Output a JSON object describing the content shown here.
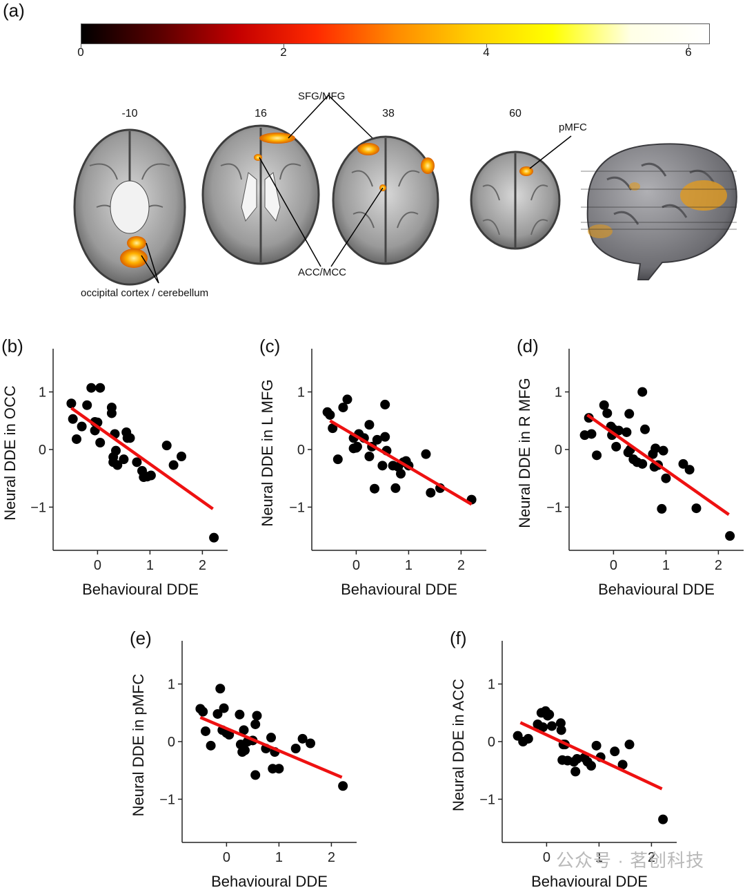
{
  "figure": {
    "panel_a": {
      "label": "(a)",
      "colorbar": {
        "ticks": [
          "0",
          "2",
          "4",
          "6"
        ],
        "colors": [
          "#000000",
          "#5a0000",
          "#c40000",
          "#ff2a00",
          "#ff8a00",
          "#ffd000",
          "#ffff00",
          "#ffffe6",
          "#ffffff"
        ]
      },
      "slices": [
        "-10",
        "16",
        "38",
        "60"
      ],
      "annotations": {
        "sfg_mfg": "SFG/MFG",
        "pmfc": "pMFC",
        "acc_mcc": "ACC/MCC",
        "occipital": "occipital cortex / cerebellum"
      }
    },
    "watermark": "公众号 · 茗创科技"
  },
  "chart_data": [
    {
      "panel": "(b)",
      "type": "scatter",
      "xlabel": "Behavioural DDE",
      "ylabel": "Neural DDE in OCC",
      "xlim": [
        -0.65,
        2.35
      ],
      "ylim": [
        -1.75,
        1.75
      ],
      "xticks": [
        "0",
        "1",
        "2"
      ],
      "yticks": [
        "1",
        "0",
        "−1"
      ],
      "x": [
        -0.5,
        -0.47,
        -0.4,
        -0.3,
        -0.2,
        -0.12,
        -0.05,
        -0.05,
        0.05,
        0.05,
        0.0,
        0.27,
        0.27,
        0.3,
        0.3,
        0.33,
        0.35,
        0.38,
        0.5,
        0.55,
        0.57,
        0.62,
        0.75,
        0.85,
        0.88,
        0.95,
        1.02,
        1.32,
        1.45,
        1.6,
        2.22
      ],
      "y": [
        0.8,
        0.53,
        0.18,
        0.4,
        0.77,
        1.07,
        0.33,
        0.48,
        1.07,
        0.12,
        0.47,
        0.73,
        0.63,
        -0.13,
        -0.22,
        0.27,
        -0.02,
        -0.27,
        -0.17,
        0.3,
        0.2,
        0.2,
        -0.22,
        -0.37,
        -0.48,
        -0.47,
        -0.45,
        0.07,
        -0.27,
        -0.12,
        -1.53
      ],
      "fit": {
        "x": [
          -0.5,
          2.2
        ],
        "y": [
          0.72,
          -1.03
        ]
      }
    },
    {
      "panel": "(c)",
      "type": "scatter",
      "xlabel": "Behavioural DDE",
      "ylabel": "Neural DDE in L MFG",
      "xlim": [
        -0.65,
        2.35
      ],
      "ylim": [
        -1.75,
        1.75
      ],
      "xticks": [
        "0",
        "1",
        "2"
      ],
      "yticks": [
        "1",
        "0",
        "−1"
      ],
      "x": [
        -0.55,
        -0.5,
        -0.45,
        -0.35,
        -0.25,
        -0.17,
        -0.05,
        -0.05,
        0.0,
        0.02,
        0.05,
        0.15,
        0.25,
        0.25,
        0.3,
        0.35,
        0.4,
        0.5,
        0.55,
        0.55,
        0.58,
        0.7,
        0.75,
        0.8,
        0.85,
        0.9,
        0.95,
        1.0,
        1.33,
        1.42,
        1.6,
        2.2
      ],
      "y": [
        0.65,
        0.6,
        0.37,
        -0.17,
        0.73,
        0.87,
        0.2,
        0.02,
        0.03,
        0.05,
        0.27,
        0.2,
        0.43,
        -0.12,
        0.05,
        -0.68,
        0.17,
        -0.28,
        0.78,
        0.22,
        -0.02,
        -0.28,
        -0.67,
        -0.3,
        -0.42,
        -0.22,
        -0.2,
        -0.28,
        -0.08,
        -0.75,
        -0.67,
        -0.87
      ],
      "fit": {
        "x": [
          -0.5,
          2.2
        ],
        "y": [
          0.5,
          -0.95
        ]
      }
    },
    {
      "panel": "(d)",
      "type": "scatter",
      "xlabel": "Behavioural DDE",
      "ylabel": "Neural DDE in R MFG",
      "xlim": [
        -0.65,
        2.35
      ],
      "ylim": [
        -1.75,
        1.75
      ],
      "xticks": [
        "0",
        "1",
        "2"
      ],
      "yticks": [
        "1",
        "0",
        "−1"
      ],
      "x": [
        -0.55,
        -0.47,
        -0.42,
        -0.32,
        -0.18,
        -0.12,
        -0.05,
        -0.03,
        0.0,
        0.05,
        0.1,
        0.25,
        0.28,
        0.3,
        0.32,
        0.38,
        0.45,
        0.55,
        0.55,
        0.6,
        0.75,
        0.78,
        0.8,
        0.85,
        0.92,
        0.95,
        1.0,
        1.33,
        1.45,
        1.58,
        2.22
      ],
      "y": [
        0.25,
        0.55,
        0.27,
        -0.1,
        0.77,
        0.63,
        0.4,
        0.25,
        0.35,
        0.05,
        0.33,
        0.3,
        -0.05,
        0.62,
        0.0,
        -0.17,
        -0.22,
        1.0,
        -0.25,
        0.35,
        -0.08,
        -0.3,
        0.02,
        -0.27,
        -1.03,
        -0.02,
        -0.5,
        -0.25,
        -0.35,
        -1.02,
        -1.5
      ],
      "fit": {
        "x": [
          -0.5,
          2.2
        ],
        "y": [
          0.6,
          -1.13
        ]
      }
    },
    {
      "panel": "(e)",
      "type": "scatter",
      "xlabel": "Behavioural DDE",
      "ylabel": "Neural DDE in pMFC",
      "xlim": [
        -0.65,
        2.35
      ],
      "ylim": [
        -1.75,
        1.75
      ],
      "xticks": [
        "0",
        "1",
        "2"
      ],
      "yticks": [
        "1",
        "0",
        "−1"
      ],
      "x": [
        -0.5,
        -0.45,
        -0.4,
        -0.3,
        -0.17,
        -0.12,
        -0.08,
        -0.05,
        0.0,
        0.05,
        0.25,
        0.27,
        0.3,
        0.33,
        0.35,
        0.4,
        0.5,
        0.55,
        0.55,
        0.58,
        0.75,
        0.85,
        0.88,
        0.92,
        1.0,
        1.32,
        1.45,
        1.6,
        2.22
      ],
      "y": [
        0.57,
        0.52,
        0.18,
        -0.07,
        0.48,
        0.92,
        0.2,
        0.58,
        0.15,
        0.12,
        0.47,
        -0.05,
        -0.18,
        0.2,
        -0.15,
        0.0,
        0.02,
        -0.58,
        0.3,
        0.45,
        -0.12,
        0.07,
        -0.47,
        -0.18,
        -0.47,
        -0.12,
        0.05,
        -0.03,
        -0.77
      ],
      "fit": {
        "x": [
          -0.5,
          2.2
        ],
        "y": [
          0.42,
          -0.62
        ]
      }
    },
    {
      "panel": "(f)",
      "type": "scatter",
      "xlabel": "Behavioural DDE",
      "ylabel": "Neural DDE in ACC",
      "xlim": [
        -0.65,
        2.35
      ],
      "ylim": [
        -1.75,
        1.75
      ],
      "xticks": [
        "0",
        "1",
        "2"
      ],
      "yticks": [
        "1",
        "0",
        "−1"
      ],
      "x": [
        -0.55,
        -0.45,
        -0.35,
        -0.17,
        -0.1,
        -0.07,
        -0.02,
        0.02,
        0.05,
        0.1,
        0.27,
        0.28,
        0.3,
        0.32,
        0.35,
        0.4,
        0.52,
        0.55,
        0.58,
        0.72,
        0.78,
        0.85,
        0.95,
        1.03,
        1.3,
        1.45,
        1.58,
        2.22
      ],
      "y": [
        0.1,
        0.0,
        0.05,
        0.3,
        0.5,
        0.25,
        0.53,
        0.45,
        0.47,
        0.27,
        0.32,
        0.2,
        -0.32,
        -0.05,
        -0.05,
        -0.33,
        -0.35,
        -0.52,
        -0.3,
        -0.28,
        -0.35,
        -0.42,
        -0.07,
        -0.27,
        -0.17,
        -0.4,
        -0.05,
        -1.35
      ],
      "fit": {
        "x": [
          -0.5,
          2.2
        ],
        "y": [
          0.33,
          -0.82
        ]
      }
    }
  ]
}
